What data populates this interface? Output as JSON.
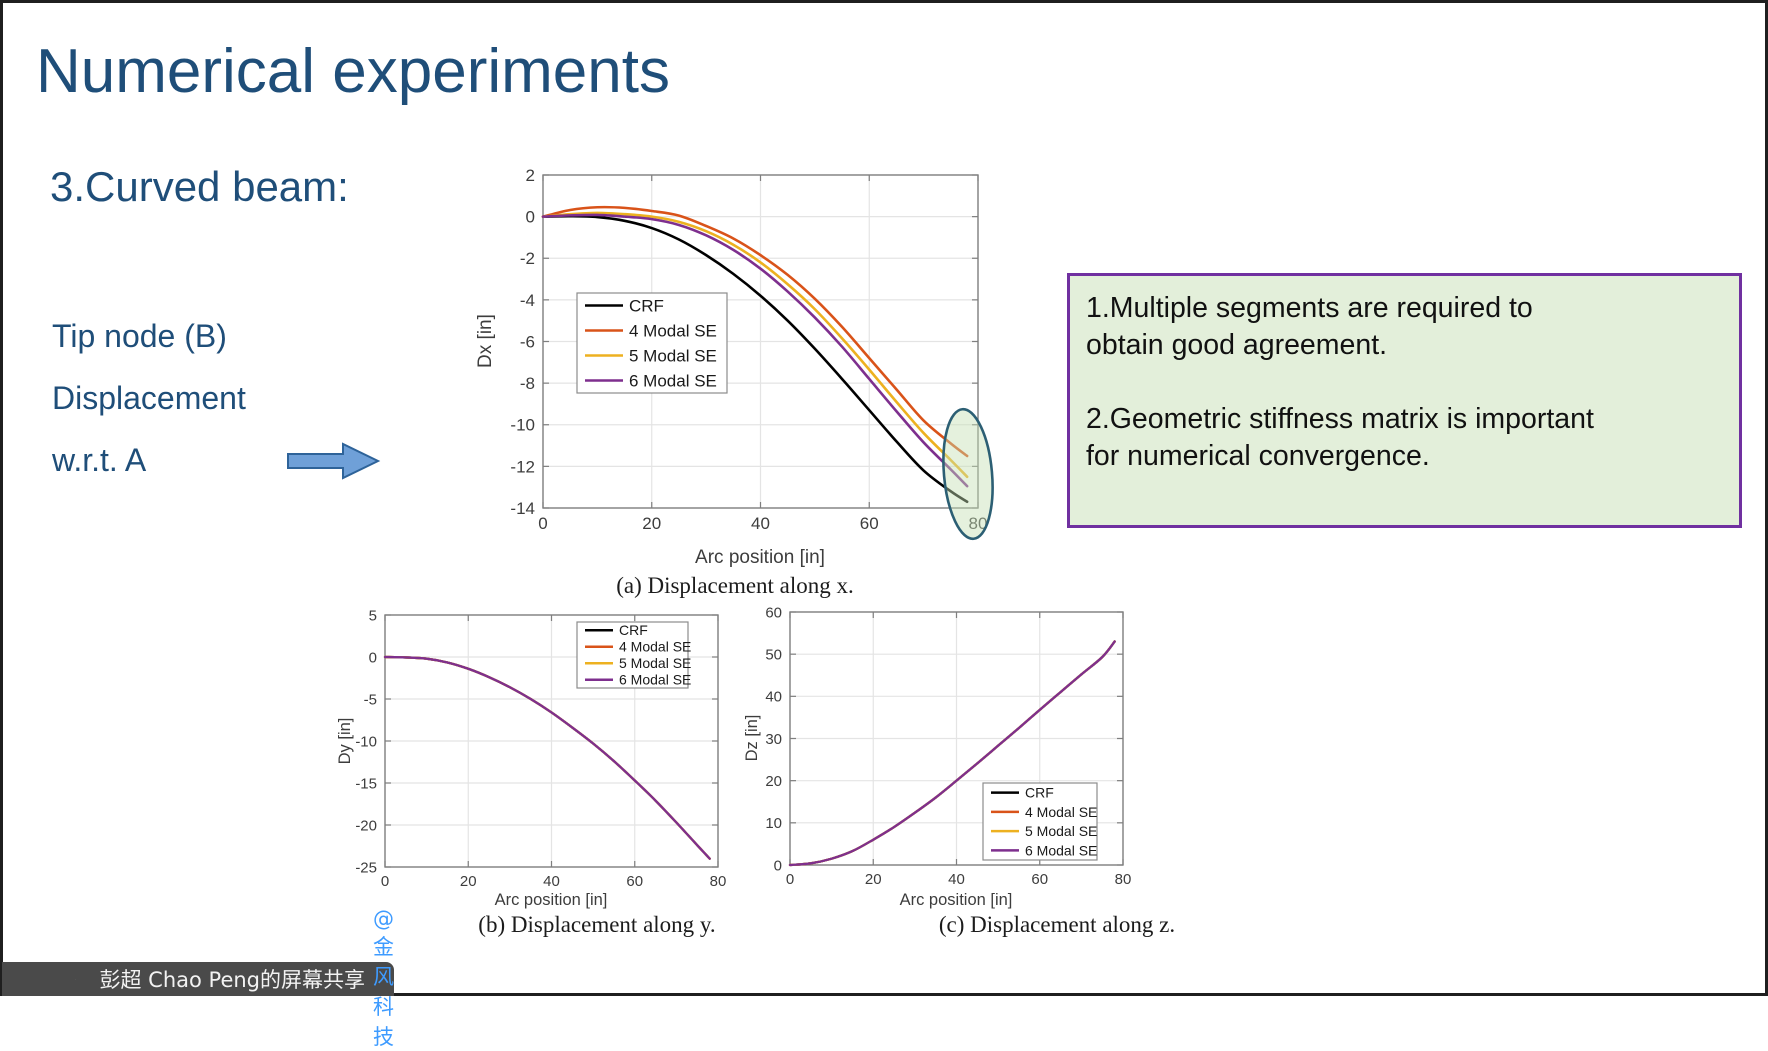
{
  "slide": {
    "title": "Numerical experiments",
    "section_heading": "3.Curved beam:",
    "left_lines": [
      "Tip node (B)",
      "Displacement",
      "w.r.t. A"
    ],
    "title_color": "#1F4E79"
  },
  "arrow": {
    "direction": "right",
    "fill": "#6FA0D8",
    "border": "#2E6399"
  },
  "notes_box": {
    "items": [
      "1.Multiple segments are required to\nobtain good agreement.",
      "2.Geometric stiffness matrix is important\nfor numerical convergence."
    ],
    "background": "#E3EFDA",
    "border_color": "#7030A0"
  },
  "chart_data": [
    {
      "type": "line",
      "caption": "(a) Displacement along x.",
      "xlabel": "Arc position [in]",
      "ylabel": "Dx [in]",
      "xlim": [
        0,
        80
      ],
      "ylim": [
        -14,
        2
      ],
      "xticks": [
        0,
        20,
        40,
        60,
        80
      ],
      "yticks": [
        2,
        0,
        -2,
        -4,
        -6,
        -8,
        -10,
        -12,
        -14
      ],
      "grid": true,
      "legend_position": "west",
      "x": [
        0,
        5,
        10,
        15,
        20,
        25,
        30,
        35,
        40,
        45,
        50,
        55,
        60,
        65,
        70,
        75,
        78
      ],
      "series": [
        {
          "name": "CRF",
          "color": "#000000",
          "values": [
            0,
            0.02,
            -0.02,
            -0.2,
            -0.55,
            -1.1,
            -1.85,
            -2.75,
            -3.8,
            -5.0,
            -6.35,
            -7.8,
            -9.3,
            -10.8,
            -12.2,
            -13.2,
            -13.7
          ]
        },
        {
          "name": "4 Modal SE",
          "color": "#D95319",
          "values": [
            0,
            0.32,
            0.45,
            0.42,
            0.27,
            0.05,
            -0.45,
            -1.05,
            -1.85,
            -2.8,
            -3.95,
            -5.3,
            -6.8,
            -8.3,
            -9.8,
            -10.9,
            -11.5
          ]
        },
        {
          "name": "5 Modal SE",
          "color": "#EDB120",
          "values": [
            0,
            0.12,
            0.18,
            0.12,
            0.0,
            -0.25,
            -0.7,
            -1.35,
            -2.2,
            -3.25,
            -4.45,
            -5.85,
            -7.35,
            -8.9,
            -10.4,
            -11.7,
            -12.5
          ]
        },
        {
          "name": "6 Modal SE",
          "color": "#7E2F8E",
          "values": [
            0,
            0.06,
            0.08,
            0.0,
            -0.12,
            -0.4,
            -0.9,
            -1.6,
            -2.5,
            -3.6,
            -4.85,
            -6.25,
            -7.8,
            -9.35,
            -10.85,
            -12.15,
            -12.95
          ]
        }
      ],
      "annotation": {
        "type": "ellipse",
        "purpose": "highlights spread of tip displacements near arc position 80",
        "fill": "#C6E0B4",
        "stroke": "#2C5F74"
      }
    },
    {
      "type": "line",
      "caption": "(b) Displacement along y.",
      "xlabel": "Arc position [in]",
      "ylabel": "Dy [in]",
      "xlim": [
        0,
        80
      ],
      "ylim": [
        -25,
        5
      ],
      "xticks": [
        0,
        20,
        40,
        60,
        80
      ],
      "yticks": [
        5,
        0,
        -5,
        -10,
        -15,
        -20,
        -25
      ],
      "grid": true,
      "legend_position": "northeast",
      "x": [
        0,
        5,
        10,
        15,
        20,
        25,
        30,
        35,
        40,
        45,
        50,
        55,
        60,
        65,
        70,
        75,
        78
      ],
      "series": [
        {
          "name": "CRF",
          "color": "#000000",
          "values": [
            0,
            -0.05,
            -0.2,
            -0.65,
            -1.4,
            -2.4,
            -3.6,
            -5.0,
            -6.6,
            -8.4,
            -10.3,
            -12.4,
            -14.7,
            -17.1,
            -19.7,
            -22.4,
            -24.0
          ]
        },
        {
          "name": "4 Modal SE",
          "color": "#D95319",
          "values": [
            0,
            -0.05,
            -0.2,
            -0.65,
            -1.4,
            -2.4,
            -3.6,
            -5.0,
            -6.6,
            -8.4,
            -10.3,
            -12.4,
            -14.7,
            -17.1,
            -19.7,
            -22.4,
            -24.0
          ]
        },
        {
          "name": "5 Modal SE",
          "color": "#EDB120",
          "values": [
            0,
            -0.05,
            -0.2,
            -0.65,
            -1.4,
            -2.4,
            -3.6,
            -5.0,
            -6.6,
            -8.4,
            -10.3,
            -12.4,
            -14.7,
            -17.1,
            -19.7,
            -22.4,
            -24.0
          ]
        },
        {
          "name": "6 Modal SE",
          "color": "#7E2F8E",
          "values": [
            0,
            -0.05,
            -0.2,
            -0.65,
            -1.4,
            -2.4,
            -3.6,
            -5.0,
            -6.6,
            -8.4,
            -10.3,
            -12.4,
            -14.7,
            -17.1,
            -19.7,
            -22.4,
            -24.0
          ]
        }
      ]
    },
    {
      "type": "line",
      "caption": "(c) Displacement along z.",
      "xlabel": "Arc position [in]",
      "ylabel": "Dz [in]",
      "xlim": [
        0,
        80
      ],
      "ylim": [
        0,
        60
      ],
      "xticks": [
        0,
        20,
        40,
        60,
        80
      ],
      "yticks": [
        0,
        10,
        20,
        30,
        40,
        50,
        60
      ],
      "grid": true,
      "legend_position": "southeast",
      "x": [
        0,
        5,
        10,
        15,
        20,
        25,
        30,
        35,
        40,
        45,
        50,
        55,
        60,
        65,
        70,
        75,
        78
      ],
      "series": [
        {
          "name": "CRF",
          "color": "#000000",
          "values": [
            0,
            0.4,
            1.5,
            3.3,
            6.0,
            9.0,
            12.4,
            16.0,
            20.0,
            24.1,
            28.3,
            32.5,
            36.8,
            41.0,
            45.2,
            49.3,
            53.0
          ]
        },
        {
          "name": "4 Modal SE",
          "color": "#D95319",
          "values": [
            0,
            0.4,
            1.5,
            3.3,
            6.0,
            9.0,
            12.4,
            16.0,
            20.0,
            24.1,
            28.3,
            32.5,
            36.8,
            41.0,
            45.2,
            49.3,
            53.0
          ]
        },
        {
          "name": "5 Modal SE",
          "color": "#EDB120",
          "values": [
            0,
            0.4,
            1.5,
            3.3,
            6.0,
            9.0,
            12.4,
            16.0,
            20.0,
            24.1,
            28.3,
            32.5,
            36.8,
            41.0,
            45.2,
            49.3,
            53.0
          ]
        },
        {
          "name": "6 Modal SE",
          "color": "#7E2F8E",
          "values": [
            0,
            0.4,
            1.5,
            3.3,
            6.0,
            9.0,
            12.4,
            16.0,
            20.0,
            24.1,
            28.3,
            32.5,
            36.8,
            41.0,
            45.2,
            49.3,
            53.0
          ]
        }
      ]
    }
  ],
  "share_bar": {
    "label": "彭超 Chao Peng的屏幕共享",
    "mention": "@金风科技",
    "background": "#4A4A4A",
    "mention_color": "#3E9BFF",
    "icons": [
      "microphone-muted-icon",
      "screen-share-icon"
    ]
  }
}
